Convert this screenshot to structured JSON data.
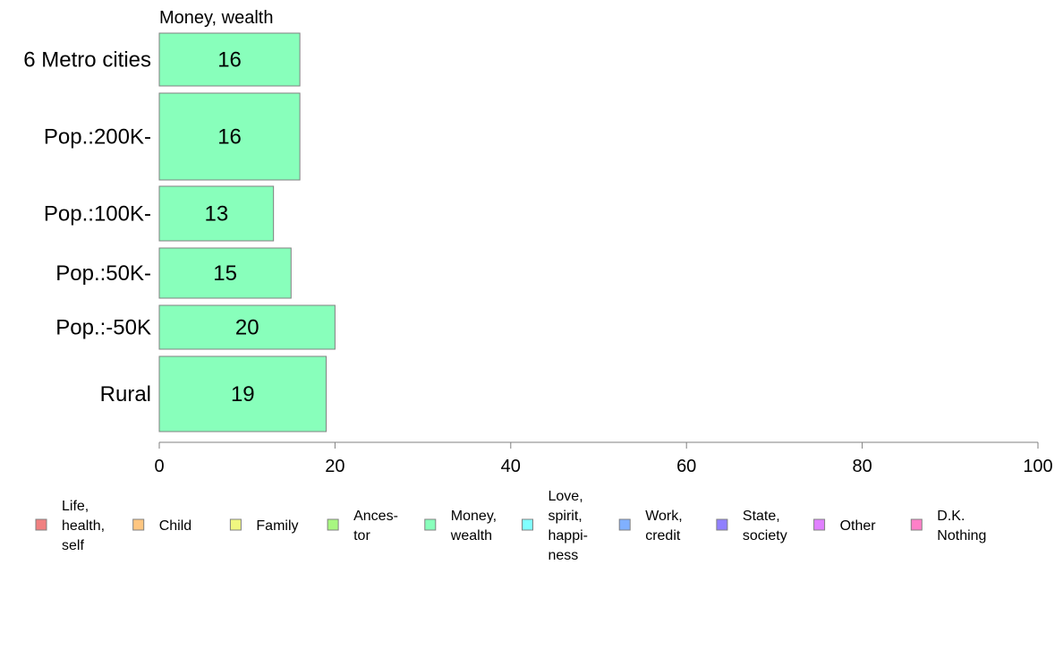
{
  "chart_data": {
    "type": "bar",
    "orientation": "horizontal",
    "title": "Money, wealth",
    "categories": [
      "6 Metro cities",
      "Pop.:200K-",
      "Pop.:100K-",
      "Pop.:50K-",
      "Pop.:-50K",
      "Rural"
    ],
    "values": [
      16,
      16,
      13,
      15,
      20,
      19
    ],
    "bar_color": "#88ffbb",
    "xlim": [
      0,
      100
    ],
    "x_ticks": [
      0,
      20,
      40,
      60,
      80,
      100
    ],
    "x_tick_labels": [
      "0",
      "20",
      "40",
      "60",
      "80",
      "100"
    ],
    "grid": false,
    "legend_placement": "bottom",
    "legend": [
      {
        "lines": [
          "Life,",
          "health,",
          "self"
        ],
        "color": "#f08080"
      },
      {
        "lines": [
          "Child"
        ],
        "color": "#fec681"
      },
      {
        "lines": [
          "Family"
        ],
        "color": "#f0f780"
      },
      {
        "lines": [
          "Ances-",
          "tor"
        ],
        "color": "#a8f780"
      },
      {
        "lines": [
          "Money,",
          "wealth"
        ],
        "color": "#88ffbb"
      },
      {
        "lines": [
          "Love,",
          "spirit,",
          "happi-",
          "ness"
        ],
        "color": "#80ffff"
      },
      {
        "lines": [
          "Work,",
          "credit"
        ],
        "color": "#80b0ff"
      },
      {
        "lines": [
          "State,",
          "society"
        ],
        "color": "#9080ff"
      },
      {
        "lines": [
          "Other"
        ],
        "color": "#e080ff"
      },
      {
        "lines": [
          "D.K.",
          "Nothing"
        ],
        "color": "#ff80c8"
      }
    ]
  }
}
